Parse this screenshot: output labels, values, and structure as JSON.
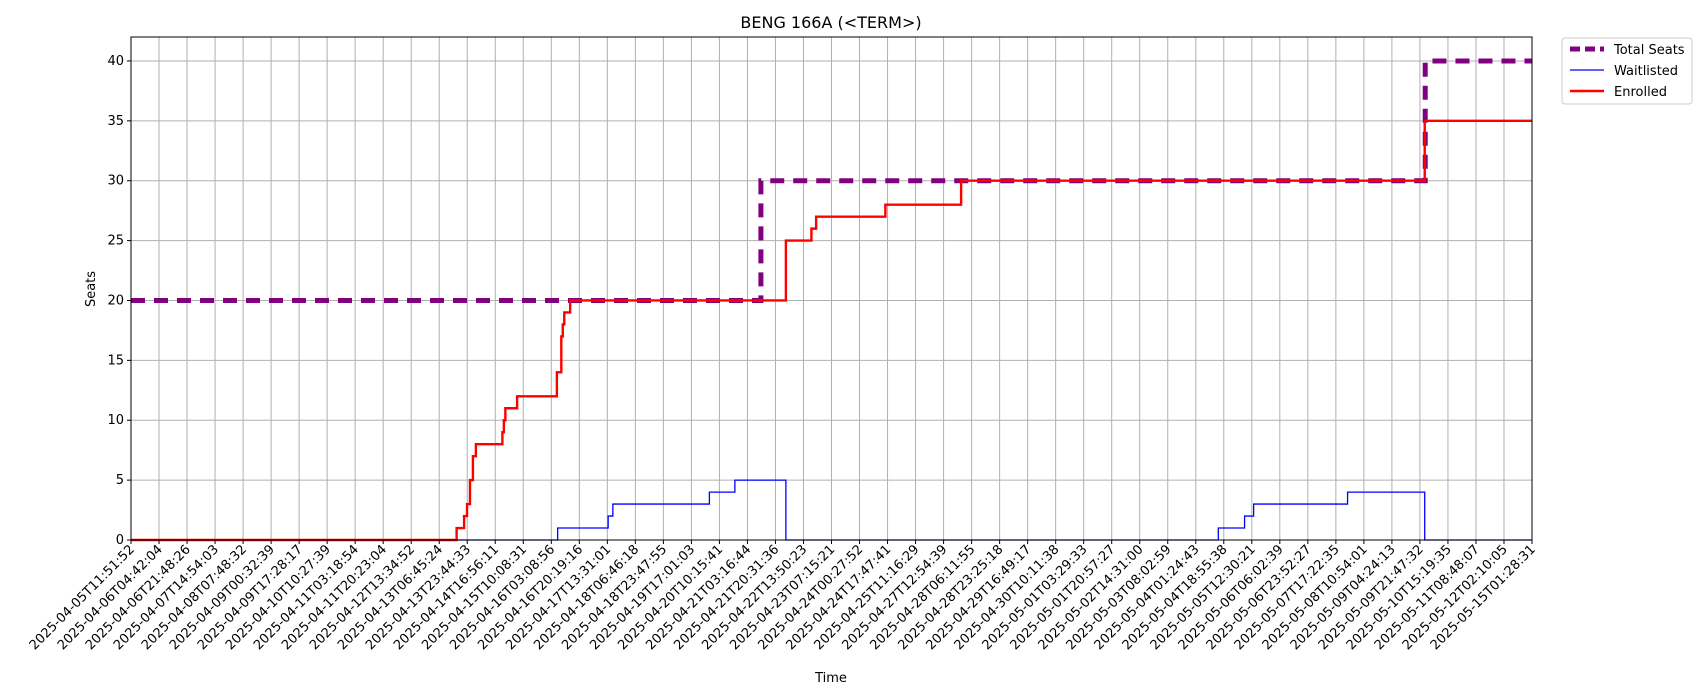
{
  "chart_data": {
    "type": "line",
    "title": "BENG 166A (<TERM>)",
    "xlabel": "Time",
    "ylabel": "Seats",
    "ylim": [
      0,
      42
    ],
    "yticks": [
      0,
      5,
      10,
      15,
      20,
      25,
      30,
      35,
      40
    ],
    "grid": true,
    "legend_position": "outside-top-right",
    "x_range": [
      "2025-04-05T11:51:52",
      "2025-05-15T03:00:00"
    ],
    "x_tick_labels": [
      "2025-04-05T11:51:52",
      "2025-04-06T04:42:04",
      "2025-04-06T21:48:26",
      "2025-04-07T14:54:03",
      "2025-04-08T07:48:32",
      "2025-04-09T00:32:39",
      "2025-04-09T17:28:17",
      "2025-04-10T10:27:39",
      "2025-04-11T03:18:54",
      "2025-04-11T20:23:04",
      "2025-04-12T13:34:52",
      "2025-04-13T06:45:24",
      "2025-04-13T23:44:33",
      "2025-04-14T16:56:11",
      "2025-04-15T10:08:31",
      "2025-04-16T03:08:56",
      "2025-04-16T20:19:16",
      "2025-04-17T13:31:01",
      "2025-04-18T06:46:18",
      "2025-04-18T23:47:55",
      "2025-04-19T17:01:03",
      "2025-04-20T10:15:41",
      "2025-04-21T03:16:44",
      "2025-04-21T20:31:36",
      "2025-04-22T13:50:23",
      "2025-04-23T07:15:21",
      "2025-04-24T00:27:52",
      "2025-04-24T17:47:41",
      "2025-04-25T11:16:29",
      "2025-04-27T12:54:39",
      "2025-04-28T06:11:55",
      "2025-04-28T23:25:18",
      "2025-04-29T16:49:17",
      "2025-04-30T10:11:38",
      "2025-05-01T03:29:33",
      "2025-05-01T20:57:27",
      "2025-05-02T14:31:00",
      "2025-05-03T08:02:59",
      "2025-05-04T01:24:43",
      "2025-05-04T18:55:38",
      "2025-05-05T12:30:21",
      "2025-05-06T06:02:39",
      "2025-05-06T23:52:27",
      "2025-05-07T17:22:35",
      "2025-05-08T10:54:01",
      "2025-05-09T04:24:13",
      "2025-05-09T21:47:32",
      "2025-05-10T15:19:35",
      "2025-05-11T08:48:07",
      "2025-05-12T02:10:05",
      "2025-05-15T01:28:31"
    ],
    "series": [
      {
        "name": "Total Seats",
        "color": "#800080",
        "style": "dashed",
        "step": true,
        "points": [
          [
            "2025-04-05T11:51:52",
            20
          ],
          [
            "2025-04-23T07:15:21",
            20
          ],
          [
            "2025-04-23T07:30:00",
            30
          ],
          [
            "2025-05-12T02:10:05",
            30
          ],
          [
            "2025-05-12T02:30:00",
            40
          ],
          [
            "2025-05-15T03:00:00",
            40
          ]
        ]
      },
      {
        "name": "Waitlisted",
        "color": "#0000ff",
        "style": "solid",
        "step": true,
        "points": [
          [
            "2025-04-05T11:51:52",
            0
          ],
          [
            "2025-04-17T13:31:01",
            1
          ],
          [
            "2025-04-18T23:47:55",
            2
          ],
          [
            "2025-04-19T03:00:00",
            3
          ],
          [
            "2025-04-21T20:31:36",
            4
          ],
          [
            "2025-04-22T13:50:23",
            5
          ],
          [
            "2025-04-24T00:27:52",
            0
          ],
          [
            "2025-05-06T06:02:39",
            1
          ],
          [
            "2025-05-06T23:52:27",
            2
          ],
          [
            "2025-05-07T06:00:00",
            3
          ],
          [
            "2025-05-09T21:47:32",
            4
          ],
          [
            "2025-05-12T02:10:05",
            0
          ],
          [
            "2025-05-15T03:00:00",
            0
          ]
        ]
      },
      {
        "name": "Enrolled",
        "color": "#ff0000",
        "style": "solid",
        "step": true,
        "points": [
          [
            "2025-04-05T11:51:52",
            0
          ],
          [
            "2025-04-14T16:56:11",
            1
          ],
          [
            "2025-04-14T22:00:00",
            2
          ],
          [
            "2025-04-15T00:00:00",
            3
          ],
          [
            "2025-04-15T02:00:00",
            5
          ],
          [
            "2025-04-15T04:00:00",
            7
          ],
          [
            "2025-04-15T06:00:00",
            8
          ],
          [
            "2025-04-16T00:00:00",
            9
          ],
          [
            "2025-04-16T01:00:00",
            10
          ],
          [
            "2025-04-16T02:00:00",
            11
          ],
          [
            "2025-04-16T10:00:00",
            12
          ],
          [
            "2025-04-17T13:00:00",
            14
          ],
          [
            "2025-04-17T16:00:00",
            17
          ],
          [
            "2025-04-17T17:00:00",
            18
          ],
          [
            "2025-04-17T18:00:00",
            19
          ],
          [
            "2025-04-17T22:00:00",
            20
          ],
          [
            "2025-04-24T00:27:52",
            25
          ],
          [
            "2025-04-24T17:47:41",
            26
          ],
          [
            "2025-04-24T21:00:00",
            27
          ],
          [
            "2025-04-26T20:00:00",
            28
          ],
          [
            "2025-04-28T23:25:18",
            30
          ],
          [
            "2025-05-12T02:10:05",
            35
          ],
          [
            "2025-05-15T03:00:00",
            35
          ]
        ]
      }
    ]
  }
}
